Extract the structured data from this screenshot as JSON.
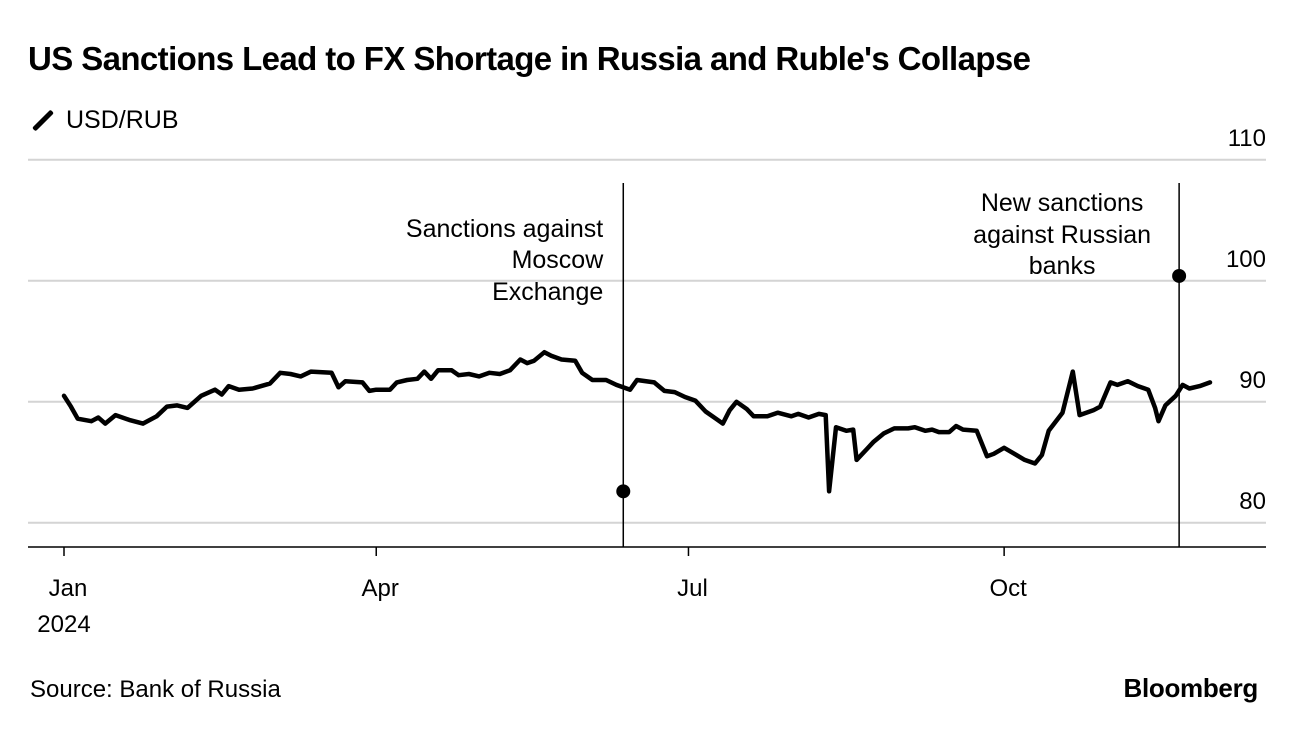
{
  "header": {
    "title": "US Sanctions Lead to FX Shortage in Russia and Ruble's Collapse",
    "legend_label": "USD/RUB",
    "source": "Source: Bank of Russia",
    "brand": "Bloomberg"
  },
  "chart_data": {
    "type": "line",
    "title": "US Sanctions Lead to FX Shortage in Russia and Ruble's Collapse",
    "xlabel": "",
    "ylabel": "",
    "ylim": [
      78,
      110
    ],
    "yticks": [
      80,
      90,
      100,
      110
    ],
    "xlim": [
      "2024-01-01",
      "2024-11-30"
    ],
    "xticks": [
      {
        "date": "2024-01-01",
        "label": "Jan",
        "sublabel": "2024"
      },
      {
        "date": "2024-04-01",
        "label": "Apr"
      },
      {
        "date": "2024-07-01",
        "label": "Jul"
      },
      {
        "date": "2024-10-01",
        "label": "Oct"
      }
    ],
    "grid": true,
    "series": [
      {
        "name": "USD/RUB",
        "color": "#000000",
        "points": [
          [
            "2024-01-01",
            90.5
          ],
          [
            "2024-01-03",
            89.6
          ],
          [
            "2024-01-05",
            88.6
          ],
          [
            "2024-01-09",
            88.4
          ],
          [
            "2024-01-11",
            88.7
          ],
          [
            "2024-01-13",
            88.2
          ],
          [
            "2024-01-16",
            88.9
          ],
          [
            "2024-01-20",
            88.5
          ],
          [
            "2024-01-24",
            88.2
          ],
          [
            "2024-01-28",
            88.8
          ],
          [
            "2024-01-31",
            89.6
          ],
          [
            "2024-02-03",
            89.7
          ],
          [
            "2024-02-06",
            89.5
          ],
          [
            "2024-02-10",
            90.5
          ],
          [
            "2024-02-14",
            91.0
          ],
          [
            "2024-02-16",
            90.6
          ],
          [
            "2024-02-18",
            91.3
          ],
          [
            "2024-02-21",
            91.0
          ],
          [
            "2024-02-25",
            91.1
          ],
          [
            "2024-03-01",
            91.5
          ],
          [
            "2024-03-04",
            92.4
          ],
          [
            "2024-03-07",
            92.3
          ],
          [
            "2024-03-10",
            92.1
          ],
          [
            "2024-03-13",
            92.5
          ],
          [
            "2024-03-19",
            92.4
          ],
          [
            "2024-03-21",
            91.2
          ],
          [
            "2024-03-23",
            91.7
          ],
          [
            "2024-03-28",
            91.6
          ],
          [
            "2024-03-30",
            90.9
          ],
          [
            "2024-04-01",
            91.0
          ],
          [
            "2024-04-05",
            91.0
          ],
          [
            "2024-04-07",
            91.6
          ],
          [
            "2024-04-10",
            91.8
          ],
          [
            "2024-04-13",
            91.9
          ],
          [
            "2024-04-15",
            92.5
          ],
          [
            "2024-04-17",
            91.9
          ],
          [
            "2024-04-19",
            92.6
          ],
          [
            "2024-04-23",
            92.6
          ],
          [
            "2024-04-25",
            92.2
          ],
          [
            "2024-04-28",
            92.3
          ],
          [
            "2024-05-01",
            92.1
          ],
          [
            "2024-05-04",
            92.4
          ],
          [
            "2024-05-07",
            92.3
          ],
          [
            "2024-05-10",
            92.6
          ],
          [
            "2024-05-13",
            93.5
          ],
          [
            "2024-05-15",
            93.2
          ],
          [
            "2024-05-17",
            93.4
          ],
          [
            "2024-05-20",
            94.1
          ],
          [
            "2024-05-22",
            93.8
          ],
          [
            "2024-05-25",
            93.5
          ],
          [
            "2024-05-29",
            93.4
          ],
          [
            "2024-05-31",
            92.4
          ],
          [
            "2024-06-03",
            91.8
          ],
          [
            "2024-06-07",
            91.8
          ],
          [
            "2024-06-10",
            91.4
          ],
          [
            "2024-06-14",
            91.0
          ],
          [
            "2024-06-16",
            91.8
          ],
          [
            "2024-06-21",
            91.6
          ],
          [
            "2024-06-24",
            90.9
          ],
          [
            "2024-06-27",
            90.8
          ],
          [
            "2024-06-30",
            90.4
          ],
          [
            "2024-07-03",
            90.1
          ],
          [
            "2024-07-06",
            89.2
          ],
          [
            "2024-07-09",
            88.6
          ],
          [
            "2024-07-11",
            88.2
          ],
          [
            "2024-07-13",
            89.3
          ],
          [
            "2024-07-15",
            90.0
          ],
          [
            "2024-07-18",
            89.4
          ],
          [
            "2024-07-20",
            88.8
          ],
          [
            "2024-07-24",
            88.8
          ],
          [
            "2024-07-27",
            89.1
          ],
          [
            "2024-07-31",
            88.8
          ],
          [
            "2024-08-02",
            89.0
          ],
          [
            "2024-08-05",
            88.7
          ],
          [
            "2024-08-08",
            89.0
          ],
          [
            "2024-08-10",
            88.9
          ],
          [
            "2024-08-11",
            82.6
          ],
          [
            "2024-08-13",
            87.9
          ],
          [
            "2024-08-16",
            87.6
          ],
          [
            "2024-08-18",
            87.7
          ],
          [
            "2024-08-19",
            85.2
          ],
          [
            "2024-08-22",
            86.1
          ],
          [
            "2024-08-24",
            86.7
          ],
          [
            "2024-08-27",
            87.4
          ],
          [
            "2024-08-30",
            87.8
          ],
          [
            "2024-09-03",
            87.8
          ],
          [
            "2024-09-05",
            87.9
          ],
          [
            "2024-09-08",
            87.6
          ],
          [
            "2024-09-10",
            87.7
          ],
          [
            "2024-09-12",
            87.5
          ],
          [
            "2024-09-15",
            87.5
          ],
          [
            "2024-09-17",
            88.0
          ],
          [
            "2024-09-19",
            87.7
          ],
          [
            "2024-09-23",
            87.6
          ],
          [
            "2024-09-26",
            85.5
          ],
          [
            "2024-09-28",
            85.7
          ],
          [
            "2024-10-01",
            86.2
          ],
          [
            "2024-10-04",
            85.7
          ],
          [
            "2024-10-07",
            85.2
          ],
          [
            "2024-10-10",
            84.9
          ],
          [
            "2024-10-12",
            85.6
          ],
          [
            "2024-10-14",
            87.6
          ],
          [
            "2024-10-18",
            89.1
          ],
          [
            "2024-10-21",
            92.5
          ],
          [
            "2024-10-23",
            88.9
          ],
          [
            "2024-10-27",
            89.3
          ],
          [
            "2024-10-29",
            89.6
          ],
          [
            "2024-11-01",
            91.6
          ],
          [
            "2024-11-03",
            91.4
          ],
          [
            "2024-11-06",
            91.7
          ],
          [
            "2024-11-09",
            91.3
          ],
          [
            "2024-11-12",
            91.0
          ],
          [
            "2024-11-14",
            89.5
          ],
          [
            "2024-11-15",
            88.4
          ],
          [
            "2024-11-17",
            89.7
          ],
          [
            "2024-11-20",
            90.5
          ],
          [
            "2024-11-22",
            91.4
          ],
          [
            "2024-11-24",
            91.1
          ],
          [
            "2024-11-27",
            91.3
          ],
          [
            "2024-11-30",
            91.6
          ]
        ]
      }
    ],
    "annotations": [
      {
        "text": "Sanctions against Moscow Exchange",
        "date": "2024-06-12",
        "marker_value": 82.6
      },
      {
        "text": "New sanctions against Russian banks",
        "date": "2024-11-21",
        "marker_value": 100.4
      }
    ]
  }
}
